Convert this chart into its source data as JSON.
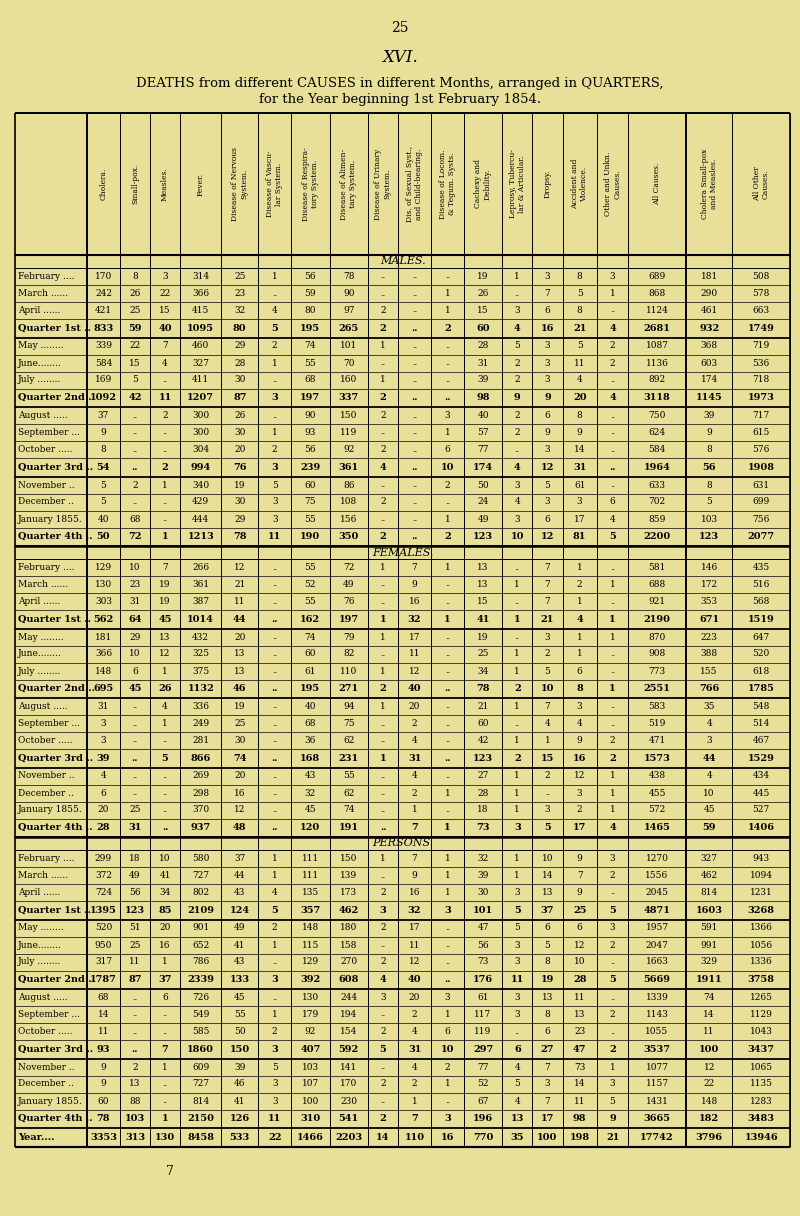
{
  "page_number": "25",
  "roman_numeral": "XVI.",
  "title_line1": "DEATHS from different CAUSES in different Months, arranged in QUARTERS,",
  "title_line2": "for the Year beginning 1st February 1854.",
  "footer_number": "7",
  "bg_color": "#e8e099",
  "header_cols": [
    "Cholera.",
    "Small-pox.",
    "Measles.",
    "Fever.",
    "Disease of Nervous\nSystem.",
    "Disease of Vascu-\nlar System.",
    "Disease of Respira-\ntory System.",
    "Disease of Alimen-\ntary System.",
    "Disease of Urinary\nSystem.",
    "Dis. of Sexual Syst.,\nand Child-bearing.",
    "Disease of Locom.\n& Tegum. Systs.",
    "Cachexy and\nDebility.",
    "Leprosy, Tubercu-\nlar & Articular.",
    "Dropsy.",
    "Accident and\nViolence.",
    "Other and Unkn.\nCauses.",
    "All Causes.",
    "Cholera Small-pox\nand Measles.",
    "All Other\nCauses."
  ],
  "males": [
    [
      "February ....",
      "170",
      "8",
      "3",
      "314",
      "25",
      "1",
      "56",
      "78",
      "..",
      "..",
      "..",
      "19",
      "1",
      "3",
      "8",
      "3",
      "689",
      "181",
      "508"
    ],
    [
      "March ......",
      "242",
      "26",
      "22",
      "366",
      "23",
      "..",
      "59",
      "90",
      "..",
      "..",
      "1",
      "26",
      "..",
      "7",
      "5",
      "1",
      "868",
      "290",
      "578"
    ],
    [
      "April ......",
      "421",
      "25",
      "15",
      "415",
      "32",
      "4",
      "80",
      "97",
      "2",
      "..",
      "1",
      "15",
      "3",
      "6",
      "8",
      "..",
      "1124",
      "461",
      "663"
    ],
    [
      "Quarter 1st ..",
      "833",
      "59",
      "40",
      "1095",
      "80",
      "5",
      "195",
      "265",
      "2",
      "..",
      "2",
      "60",
      "4",
      "16",
      "21",
      "4",
      "2681",
      "932",
      "1749"
    ],
    [
      "May ........",
      "339",
      "22",
      "7",
      "460",
      "29",
      "2",
      "74",
      "101",
      "1",
      "..",
      "..",
      "28",
      "5",
      "3",
      "5",
      "2",
      "1087",
      "368",
      "719"
    ],
    [
      "June........",
      "584",
      "15",
      "4",
      "327",
      "28",
      "1",
      "55",
      "70",
      "..",
      "..",
      "..",
      "31",
      "2",
      "3",
      "11",
      "2",
      "1136",
      "603",
      "536"
    ],
    [
      "July ........",
      "169",
      "5",
      "..",
      "411",
      "30",
      "..",
      "68",
      "160",
      "1",
      "..",
      "..",
      "39",
      "2",
      "3",
      "4",
      "..",
      "892",
      "174",
      "718"
    ],
    [
      "Quarter 2nd ..",
      "1092",
      "42",
      "11",
      "1207",
      "87",
      "3",
      "197",
      "337",
      "2",
      "..",
      "..",
      "98",
      "9",
      "9",
      "20",
      "4",
      "3118",
      "1145",
      "1973"
    ],
    [
      "August .....",
      "37",
      "..",
      "2",
      "300",
      "26",
      "..",
      "90",
      "150",
      "2",
      "..",
      "3",
      "40",
      "2",
      "6",
      "8",
      "..",
      "750",
      "39",
      "717"
    ],
    [
      "September ...",
      "9",
      "..",
      "..",
      "300",
      "30",
      "1",
      "93",
      "119",
      "..",
      "..",
      "1",
      "57",
      "2",
      "9",
      "9",
      "..",
      "624",
      "9",
      "615"
    ],
    [
      "October .....",
      "8",
      "..",
      "..",
      "304",
      "20",
      "2",
      "56",
      "92",
      "2",
      "..",
      "6",
      "77",
      "..",
      "3",
      "14",
      "..",
      "584",
      "8",
      "576"
    ],
    [
      "Quarter 3rd ..",
      "54",
      "..",
      "2",
      "994",
      "76",
      "3",
      "239",
      "361",
      "4",
      "..",
      "10",
      "174",
      "4",
      "12",
      "31",
      "..",
      "1964",
      "56",
      "1908"
    ],
    [
      "November ..",
      "5",
      "2",
      "1",
      "340",
      "19",
      "5",
      "60",
      "86",
      "..",
      "..",
      "2",
      "50",
      "3",
      "5",
      "61",
      "..",
      "633",
      "8",
      "631"
    ],
    [
      "December ..",
      "5",
      "..",
      "..",
      "429",
      "30",
      "3",
      "75",
      "108",
      "2",
      "..",
      "..",
      "24",
      "4",
      "3",
      "3",
      "6",
      "702",
      "5",
      "699"
    ],
    [
      "January 1855.",
      "40",
      "68",
      "..",
      "444",
      "29",
      "3",
      "55",
      "156",
      "..",
      "..",
      "1",
      "49",
      "3",
      "6",
      "17",
      "4",
      "859",
      "103",
      "756"
    ],
    [
      "Quarter 4th ..",
      "50",
      "72",
      "1",
      "1213",
      "78",
      "11",
      "190",
      "350",
      "2",
      "..",
      "2",
      "123",
      "10",
      "12",
      "81",
      "5",
      "2200",
      "123",
      "2077"
    ]
  ],
  "females": [
    [
      "February ....",
      "129",
      "10",
      "7",
      "266",
      "12",
      "..",
      "55",
      "72",
      "1",
      "7",
      "1",
      "13",
      "..",
      "7",
      "1",
      "..",
      "581",
      "146",
      "435"
    ],
    [
      "March ......",
      "130",
      "23",
      "19",
      "361",
      "21",
      "..",
      "52",
      "49",
      "..",
      "9",
      "..",
      "13",
      "1",
      "7",
      "2",
      "1",
      "688",
      "172",
      "516"
    ],
    [
      "April ......",
      "303",
      "31",
      "19",
      "387",
      "11",
      "..",
      "55",
      "76",
      "..",
      "16",
      "..",
      "15",
      "..",
      "7",
      "1",
      "..",
      "921",
      "353",
      "568"
    ],
    [
      "Quarter 1st ..",
      "562",
      "64",
      "45",
      "1014",
      "44",
      "..",
      "162",
      "197",
      "1",
      "32",
      "1",
      "41",
      "1",
      "21",
      "4",
      "1",
      "2190",
      "671",
      "1519"
    ],
    [
      "May ........",
      "181",
      "29",
      "13",
      "432",
      "20",
      "..",
      "74",
      "79",
      "1",
      "17",
      "..",
      "19",
      "..",
      "3",
      "1",
      "1",
      "870",
      "223",
      "647"
    ],
    [
      "June........",
      "366",
      "10",
      "12",
      "325",
      "13",
      "..",
      "60",
      "82",
      "..",
      "11",
      "..",
      "25",
      "1",
      "2",
      "1",
      "..",
      "908",
      "388",
      "520"
    ],
    [
      "July ........",
      "148",
      "6",
      "1",
      "375",
      "13",
      "..",
      "61",
      "110",
      "1",
      "12",
      "..",
      "34",
      "1",
      "5",
      "6",
      "..",
      "773",
      "155",
      "618"
    ],
    [
      "Quarter 2nd ..",
      "695",
      "45",
      "26",
      "1132",
      "46",
      "..",
      "195",
      "271",
      "2",
      "40",
      "..",
      "78",
      "2",
      "10",
      "8",
      "1",
      "2551",
      "766",
      "1785"
    ],
    [
      "August .....",
      "31",
      "..",
      "4",
      "336",
      "19",
      "..",
      "40",
      "94",
      "1",
      "20",
      "..",
      "21",
      "1",
      "7",
      "3",
      "..",
      "583",
      "35",
      "548"
    ],
    [
      "September ...",
      "3",
      "..",
      "1",
      "249",
      "25",
      "..",
      "68",
      "75",
      "..",
      "2",
      "..",
      "60",
      "..",
      "4",
      "4",
      "..",
      "519",
      "4",
      "514"
    ],
    [
      "October .....",
      "3",
      "..",
      "..",
      "281",
      "30",
      "..",
      "36",
      "62",
      "..",
      "4",
      "..",
      "42",
      "1",
      "1",
      "9",
      "2",
      "471",
      "3",
      "467"
    ],
    [
      "Quarter 3rd ..",
      "39",
      "..",
      "5",
      "866",
      "74",
      "..",
      "168",
      "231",
      "1",
      "31",
      "..",
      "123",
      "2",
      "15",
      "16",
      "2",
      "1573",
      "44",
      "1529"
    ],
    [
      "November ..",
      "4",
      "..",
      "..",
      "269",
      "20",
      "..",
      "43",
      "55",
      "..",
      "4",
      "..",
      "27",
      "1",
      "2",
      "12",
      "1",
      "438",
      "4",
      "434"
    ],
    [
      "December ..",
      "6",
      "..",
      "..",
      "298",
      "16",
      "..",
      "32",
      "62",
      "..",
      "2",
      "1",
      "28",
      "1",
      "..",
      "3",
      "1",
      "455",
      "10",
      "445"
    ],
    [
      "January 1855.",
      "20",
      "25",
      "..",
      "370",
      "12",
      "..",
      "45",
      "74",
      "..",
      "1",
      "..",
      "18",
      "1",
      "3",
      "2",
      "1",
      "572",
      "45",
      "527"
    ],
    [
      "Quarter 4th ..",
      "28",
      "31",
      "..",
      "937",
      "48",
      "..",
      "120",
      "191",
      "..",
      "7",
      "1",
      "73",
      "3",
      "5",
      "17",
      "4",
      "1465",
      "59",
      "1406"
    ]
  ],
  "persons": [
    [
      "February ....",
      "299",
      "18",
      "10",
      "580",
      "37",
      "1",
      "111",
      "150",
      "1",
      "7",
      "1",
      "32",
      "1",
      "10",
      "9",
      "3",
      "1270",
      "327",
      "943"
    ],
    [
      "March ......",
      "372",
      "49",
      "41",
      "727",
      "44",
      "1",
      "111",
      "139",
      "..",
      "9",
      "1",
      "39",
      "1",
      "14",
      "7",
      "2",
      "1556",
      "462",
      "1094"
    ],
    [
      "April ......",
      "724",
      "56",
      "34",
      "802",
      "43",
      "4",
      "135",
      "173",
      "2",
      "16",
      "1",
      "30",
      "3",
      "13",
      "9",
      "..",
      "2045",
      "814",
      "1231"
    ],
    [
      "Quarter 1st ..",
      "1395",
      "123",
      "85",
      "2109",
      "124",
      "5",
      "357",
      "462",
      "3",
      "32",
      "3",
      "101",
      "5",
      "37",
      "25",
      "5",
      "4871",
      "1603",
      "3268"
    ],
    [
      "May ........",
      "520",
      "51",
      "20",
      "901",
      "49",
      "2",
      "148",
      "180",
      "2",
      "17",
      "..",
      "47",
      "5",
      "6",
      "6",
      "3",
      "1957",
      "591",
      "1366"
    ],
    [
      "June........",
      "950",
      "25",
      "16",
      "652",
      "41",
      "1",
      "115",
      "158",
      "..",
      "11",
      "..",
      "56",
      "3",
      "5",
      "12",
      "2",
      "2047",
      "991",
      "1056"
    ],
    [
      "July ........",
      "317",
      "11",
      "1",
      "786",
      "43",
      "..",
      "129",
      "270",
      "2",
      "12",
      "..",
      "73",
      "3",
      "8",
      "10",
      "..",
      "1663",
      "329",
      "1336"
    ],
    [
      "Quarter 2nd ..",
      "1787",
      "87",
      "37",
      "2339",
      "133",
      "3",
      "392",
      "608",
      "4",
      "40",
      "..",
      "176",
      "11",
      "19",
      "28",
      "5",
      "5669",
      "1911",
      "3758"
    ],
    [
      "August .....",
      "68",
      "..",
      "6",
      "726",
      "45",
      "..",
      "130",
      "244",
      "3",
      "20",
      "3",
      "61",
      "3",
      "13",
      "11",
      "..",
      "1339",
      "74",
      "1265"
    ],
    [
      "September ...",
      "14",
      "..",
      "..",
      "549",
      "55",
      "1",
      "179",
      "194",
      "..",
      "2",
      "1",
      "117",
      "3",
      "8",
      "13",
      "2",
      "1143",
      "14",
      "1129"
    ],
    [
      "October .....",
      "11",
      "..",
      "..",
      "585",
      "50",
      "2",
      "92",
      "154",
      "2",
      "4",
      "6",
      "119",
      "..",
      "6",
      "23",
      "..",
      "1055",
      "11",
      "1043"
    ],
    [
      "Quarter 3rd ..",
      "93",
      "..",
      "7",
      "1860",
      "150",
      "3",
      "407",
      "592",
      "5",
      "31",
      "10",
      "297",
      "6",
      "27",
      "47",
      "2",
      "3537",
      "100",
      "3437"
    ],
    [
      "November ..",
      "9",
      "2",
      "1",
      "609",
      "39",
      "5",
      "103",
      "141",
      "..",
      "4",
      "2",
      "77",
      "4",
      "7",
      "73",
      "1",
      "1077",
      "12",
      "1065"
    ],
    [
      "December ..",
      "9",
      "13",
      "..",
      "727",
      "46",
      "3",
      "107",
      "170",
      "2",
      "2",
      "1",
      "52",
      "5",
      "3",
      "14",
      "3",
      "1157",
      "22",
      "1135"
    ],
    [
      "January 1855.",
      "60",
      "88",
      "..",
      "814",
      "41",
      "3",
      "100",
      "230",
      "..",
      "1",
      "..",
      "67",
      "4",
      "7",
      "11",
      "5",
      "1431",
      "148",
      "1283"
    ],
    [
      "Quarter 4th ..",
      "78",
      "103",
      "1",
      "2150",
      "126",
      "11",
      "310",
      "541",
      "2",
      "7",
      "3",
      "196",
      "13",
      "17",
      "98",
      "9",
      "3665",
      "182",
      "3483"
    ],
    [
      "Year....",
      "3353",
      "313",
      "130",
      "8458",
      "533",
      "22",
      "1466",
      "2203",
      "14",
      "110",
      "16",
      "770",
      "35",
      "100",
      "198",
      "21",
      "17742",
      "3796",
      "13946"
    ]
  ]
}
